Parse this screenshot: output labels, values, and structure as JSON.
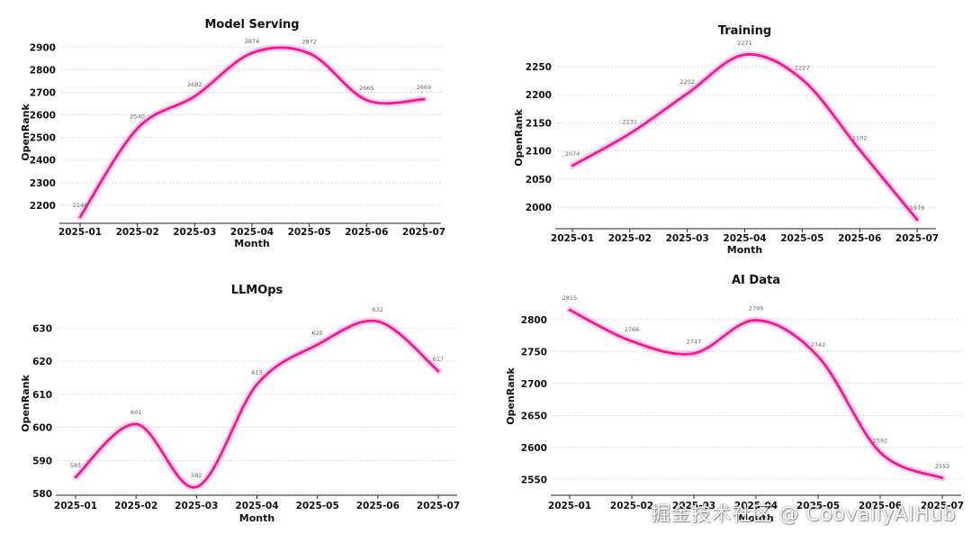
{
  "chart_data": [
    {
      "type": "line",
      "title": "Model Serving",
      "xlabel": "Month",
      "ylabel": "OpenRank",
      "categories": [
        "2025-01",
        "2025-02",
        "2025-03",
        "2025-04",
        "2025-05",
        "2025-06",
        "2025-07"
      ],
      "values": [
        2148,
        2540,
        2682,
        2874,
        2872,
        2665,
        2669
      ],
      "value_labels": [
        "2148",
        "2540",
        "2682",
        "2874",
        "2872",
        "2665",
        "2669"
      ],
      "yticks": [
        2200,
        2300,
        2400,
        2500,
        2600,
        2700,
        2800,
        2900
      ],
      "ylim": [
        2120,
        2925
      ],
      "grid": true,
      "line_color": "#ff1493"
    },
    {
      "type": "line",
      "title": "Training",
      "xlabel": "Month",
      "ylabel": "OpenRank",
      "categories": [
        "2025-01",
        "2025-02",
        "2025-03",
        "2025-04",
        "2025-05",
        "2025-06",
        "2025-07"
      ],
      "values": [
        2074,
        2131,
        2202,
        2271,
        2227,
        2102,
        1978
      ],
      "value_labels": [
        "2074",
        "2131",
        "2202",
        "2271",
        "2227",
        "2102",
        "1978"
      ],
      "yticks": [
        2000,
        2050,
        2100,
        2150,
        2200,
        2250
      ],
      "ylim": [
        1962,
        2285
      ],
      "grid": true,
      "line_color": "#ff1493"
    },
    {
      "type": "line",
      "title": "LLMOps",
      "xlabel": "Month",
      "ylabel": "OpenRank",
      "categories": [
        "2025-01",
        "2025-02",
        "2025-03",
        "2025-04",
        "2025-05",
        "2025-06",
        "2025-07"
      ],
      "values": [
        585,
        601,
        582,
        613,
        625,
        632,
        617
      ],
      "value_labels": [
        "585",
        "601",
        "582",
        "613",
        "625",
        "632",
        "617"
      ],
      "yticks": [
        580,
        590,
        600,
        610,
        620,
        630
      ],
      "ylim": [
        579.5,
        635
      ],
      "grid": true,
      "line_color": "#ff1493"
    },
    {
      "type": "line",
      "title": "AI Data",
      "xlabel": "Month",
      "ylabel": "OpenRank",
      "categories": [
        "2025-01",
        "2025-02",
        "2025-03",
        "2025-04",
        "2025-05",
        "2025-06",
        "2025-07"
      ],
      "values": [
        2815,
        2766,
        2747,
        2799,
        2742,
        2592,
        2552
      ],
      "value_labels": [
        "2815",
        "2766",
        "2747",
        "2799",
        "2742",
        "2592",
        "2552"
      ],
      "yticks": [
        2550,
        2600,
        2650,
        2700,
        2750,
        2800
      ],
      "ylim": [
        2525,
        2835
      ],
      "grid": true,
      "line_color": "#ff1493"
    }
  ],
  "watermark": "掘金技术社区 @ CoovallyAIHub"
}
